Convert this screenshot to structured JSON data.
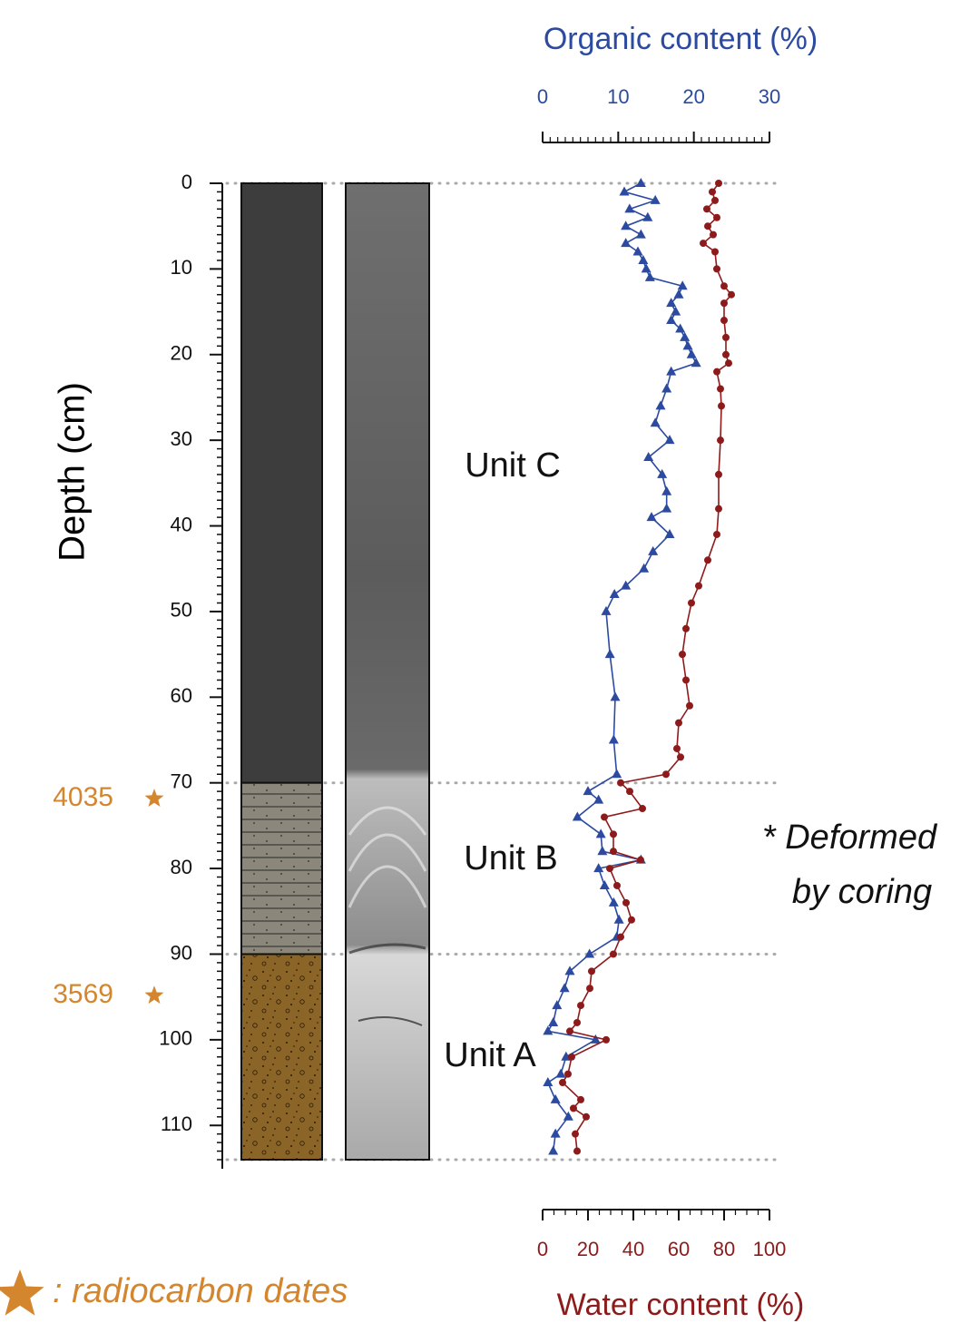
{
  "chart_data": {
    "type": "depth-profile",
    "ylabel": "Depth (cm)",
    "ylim": [
      0,
      114
    ],
    "yticks": [
      0,
      10,
      20,
      30,
      40,
      50,
      60,
      70,
      80,
      90,
      100,
      110
    ],
    "minor_ticks": true,
    "x_top_label": "Organic content (%)",
    "x_top_lim": [
      0,
      30
    ],
    "x_top_ticks": [
      0,
      10,
      20,
      30
    ],
    "x_top_color": "#2b4aa0",
    "x_bottom_label": "Water content (%)",
    "x_bottom_lim": [
      0,
      100
    ],
    "x_bottom_ticks": [
      0,
      20,
      40,
      60,
      80,
      100
    ],
    "x_bottom_color": "#8e1b1b",
    "series": [
      {
        "axis": "top",
        "color": "#2b4aa0",
        "marker": "triangle",
        "depth": [
          0,
          1,
          2,
          3,
          4,
          5,
          6,
          7,
          8,
          9,
          10,
          11,
          12,
          13,
          14,
          15,
          16,
          17,
          18,
          19,
          20,
          21,
          22,
          24,
          26,
          28,
          30,
          32,
          34,
          36,
          38,
          39,
          41,
          43,
          45,
          47,
          48,
          50,
          55,
          60,
          65,
          69,
          71,
          72,
          74,
          76,
          78,
          79,
          80,
          82,
          84,
          86,
          88,
          90,
          92,
          94,
          96,
          98,
          99,
          100,
          102,
          104,
          105,
          107,
          109,
          111,
          113
        ],
        "values": [
          13,
          10.8,
          14.9,
          11.5,
          13.9,
          11,
          13,
          11,
          12.6,
          13.3,
          13.7,
          14.2,
          18.5,
          18,
          17,
          17.6,
          17,
          18.2,
          18.8,
          19.2,
          19.7,
          20.3,
          17,
          16.4,
          15.6,
          14.9,
          16.8,
          14,
          15.8,
          16.4,
          16.4,
          14.4,
          16.8,
          14.6,
          13.4,
          11,
          9.5,
          8.4,
          8.9,
          9.6,
          9.4,
          9.8,
          6,
          7.4,
          4.6,
          7.7,
          7.9,
          13,
          7.4,
          8.2,
          9.4,
          10.1,
          9.8,
          6.2,
          3.6,
          2.9,
          1.9,
          1.4,
          0.7,
          7,
          3.1,
          2.4,
          0.7,
          1.7,
          3.4,
          1.7,
          1.4
        ]
      },
      {
        "axis": "bottom",
        "color": "#8e1b1b",
        "marker": "circle",
        "depth": [
          0,
          1,
          2,
          3,
          4,
          5,
          6,
          7,
          8,
          10,
          12,
          13,
          14,
          16,
          18,
          20,
          21,
          22,
          24,
          26,
          30,
          34,
          38,
          41,
          44,
          47,
          49,
          52,
          55,
          58,
          61,
          63,
          66,
          67,
          69,
          70,
          71,
          73,
          74,
          76,
          78,
          79,
          80,
          82,
          84,
          86,
          88,
          90,
          92,
          94,
          96,
          98,
          99,
          100,
          102,
          104,
          105,
          107,
          108,
          109,
          111,
          113
        ],
        "values": [
          77.6,
          74.8,
          76,
          72.4,
          76.8,
          72.8,
          75.2,
          70.8,
          76,
          76.8,
          80,
          83.2,
          80,
          80,
          80.8,
          80.8,
          82,
          76.8,
          78.4,
          78.8,
          78.4,
          77.6,
          77.6,
          76.8,
          72.8,
          68.8,
          65.6,
          63.2,
          61.6,
          63.2,
          64.8,
          60,
          59.2,
          60.8,
          54.4,
          34.4,
          38.4,
          44,
          27.2,
          31.2,
          31.2,
          43.2,
          29.6,
          32.8,
          36.8,
          39.2,
          34.4,
          31.2,
          21.6,
          20.8,
          16.8,
          15.2,
          12,
          28,
          12.8,
          11.2,
          8.8,
          16.8,
          13.6,
          19.2,
          14.4,
          15.2
        ]
      }
    ],
    "units": [
      {
        "label": "Unit C",
        "top": 0,
        "bottom": 70,
        "fill": "#3d3d3d"
      },
      {
        "label": "Unit B",
        "top": 70,
        "bottom": 90,
        "fill": "url(#silt)"
      },
      {
        "label": "Unit A",
        "top": 90,
        "bottom": 114,
        "fill": "url(#sand)"
      }
    ],
    "radiocarbon_dates": [
      {
        "label": "4035",
        "depth": 71
      },
      {
        "label": "3569",
        "depth": 94
      }
    ],
    "date_color": "#d4862e",
    "annotation": [
      "* Deformed",
      "by coring"
    ],
    "legend_text": ": radiocarbon dates"
  }
}
